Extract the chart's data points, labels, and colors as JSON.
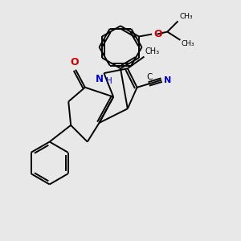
{
  "background_color": "#e8e8e8",
  "bonds_color": "#000000",
  "N_color": "#0000cd",
  "O_color": "#cc0000",
  "figsize": [
    3.0,
    3.0
  ],
  "dpi": 100,
  "xlim": [
    0,
    10
  ],
  "ylim": [
    0,
    10
  ]
}
